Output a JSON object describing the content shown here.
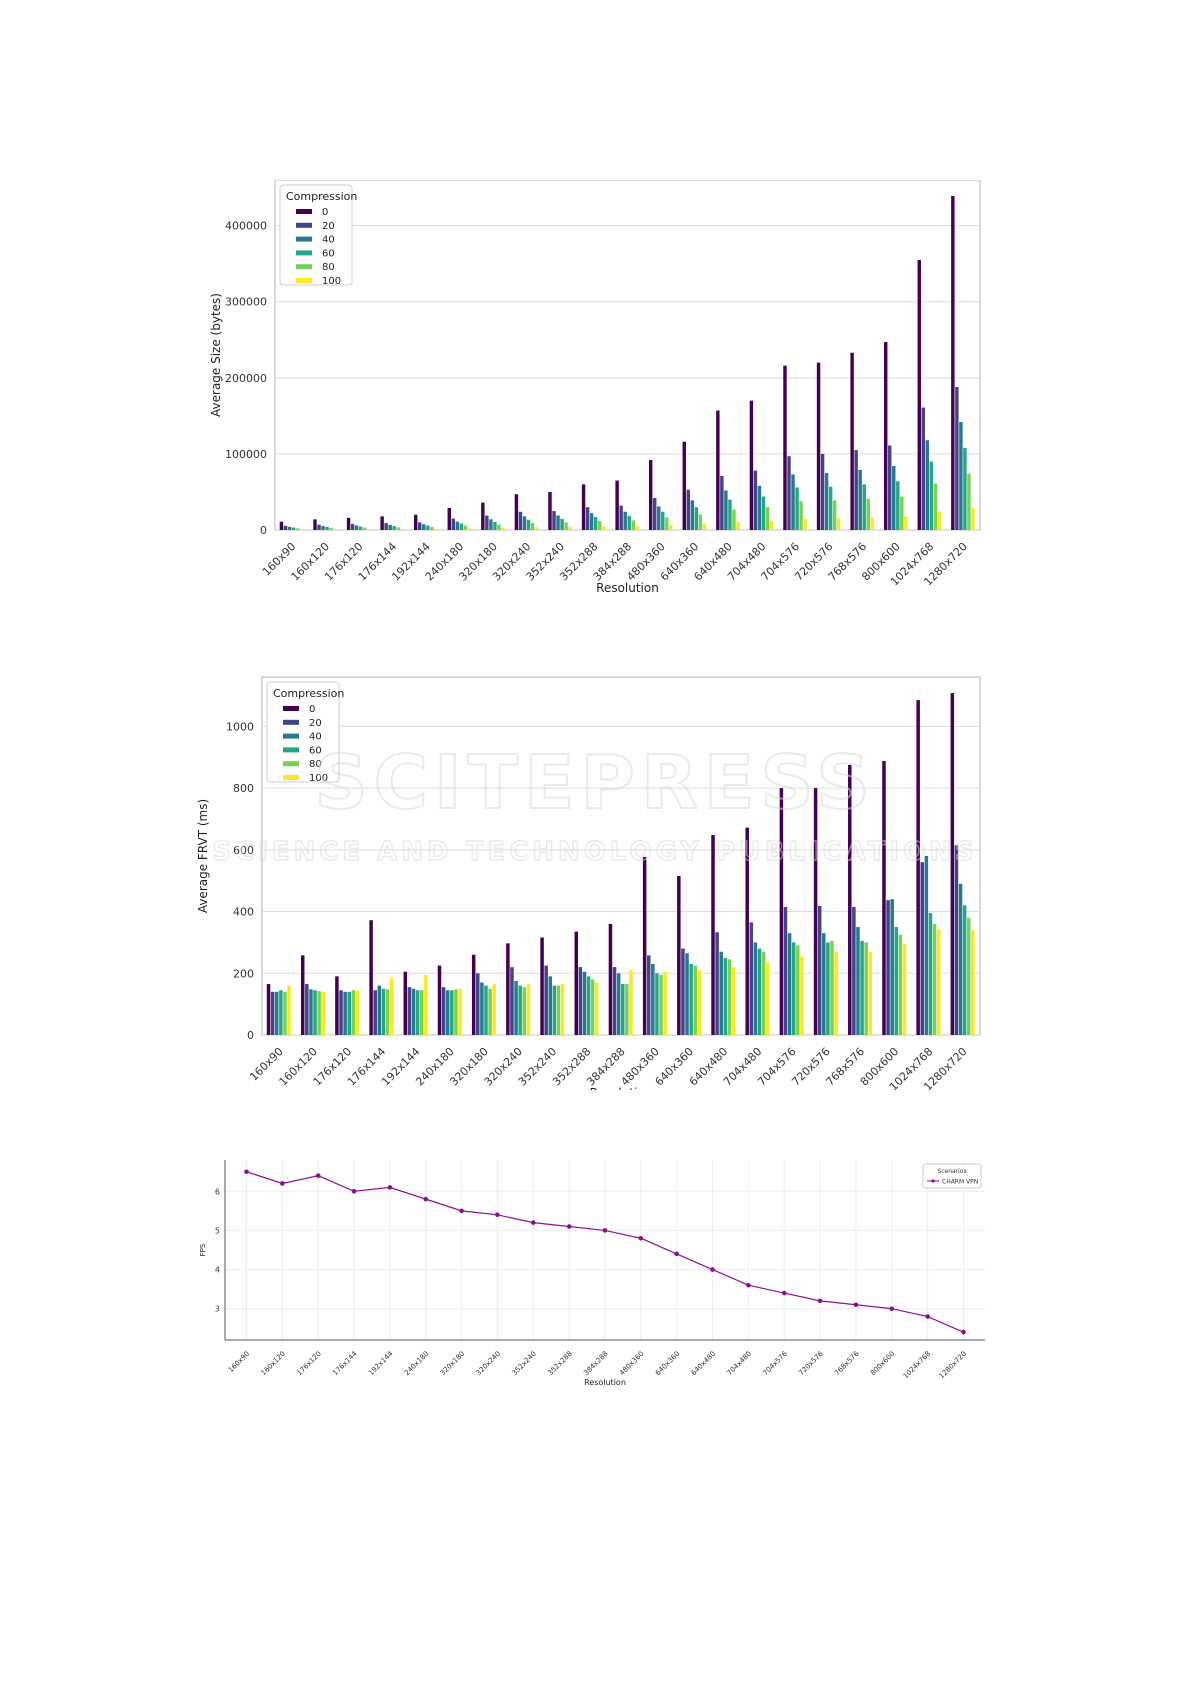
{
  "colors": {
    "c0": "#440154",
    "c20": "#414487",
    "c40": "#2a788e",
    "c60": "#22a884",
    "c80": "#7ad151",
    "c100": "#fde725",
    "line": "#8e0f8e",
    "grid": "#dddddd",
    "frame": "#cccccc",
    "watermark": "#d9d9d9"
  },
  "watermark": {
    "title": "SCITEPRESS",
    "subtitle": "SCIENCE AND TECHNOLOGY PUBLICATIONS"
  },
  "chart_data": [
    {
      "type": "bar",
      "xlabel": "Resolution",
      "ylabel": "Average Size (bytes)",
      "ylim": [
        0,
        460000
      ],
      "yticks": [
        "0",
        "100000",
        "200000",
        "300000",
        "400000"
      ],
      "grid": true,
      "legend": {
        "title": "Compression",
        "placement": "top-left"
      },
      "categories": [
        "160x90",
        "160x120",
        "176x120",
        "176x144",
        "192x144",
        "240x180",
        "320x180",
        "320x240",
        "352x240",
        "352x288",
        "384x288",
        "480x360",
        "640x360",
        "640x480",
        "704x480",
        "704x576",
        "720x576",
        "768x576",
        "800x600",
        "1024x768",
        "1280x720"
      ],
      "series": [
        {
          "name": "0",
          "values": [
            11000,
            14000,
            16000,
            18000,
            20000,
            29000,
            36000,
            47000,
            50000,
            60000,
            65000,
            92000,
            116000,
            157000,
            170000,
            216000,
            220000,
            233000,
            247000,
            355000,
            439000
          ]
        },
        {
          "name": "20",
          "values": [
            5500,
            7000,
            8000,
            9000,
            10000,
            15000,
            19000,
            24000,
            25000,
            30000,
            32000,
            42000,
            53000,
            71000,
            78000,
            97000,
            100000,
            105000,
            111000,
            161000,
            188000
          ]
        },
        {
          "name": "40",
          "values": [
            4200,
            5200,
            6000,
            6800,
            7600,
            11000,
            14000,
            18000,
            19000,
            22000,
            24000,
            31000,
            39000,
            52000,
            58000,
            73000,
            75000,
            79000,
            84000,
            118000,
            142000
          ]
        },
        {
          "name": "60",
          "values": [
            3200,
            4000,
            4600,
            5200,
            5800,
            8500,
            10500,
            13500,
            14500,
            17000,
            18500,
            24000,
            30000,
            40000,
            44000,
            56000,
            57000,
            60000,
            64000,
            90000,
            108000
          ]
        },
        {
          "name": "80",
          "values": [
            2200,
            2800,
            3200,
            3600,
            4000,
            5800,
            7200,
            9300,
            10000,
            11600,
            12600,
            16500,
            20500,
            27000,
            30000,
            38000,
            39000,
            41000,
            44000,
            61000,
            74000
          ]
        },
        {
          "name": "100",
          "values": [
            900,
            1100,
            1300,
            1500,
            1600,
            2300,
            2900,
            3700,
            4000,
            4600,
            5000,
            6600,
            8200,
            10800,
            12000,
            15000,
            15500,
            16500,
            17500,
            24500,
            29500
          ]
        }
      ]
    },
    {
      "type": "bar",
      "xlabel": "Resolution",
      "ylabel": "Average FRVT (ms)",
      "ylim": [
        0,
        1160
      ],
      "yticks": [
        "0",
        "200",
        "400",
        "600",
        "800",
        "1000"
      ],
      "grid": true,
      "legend": {
        "title": "Compression",
        "placement": "top-left"
      },
      "categories": [
        "160x90",
        "160x120",
        "176x120",
        "176x144",
        "192x144",
        "240x180",
        "320x180",
        "320x240",
        "352x240",
        "352x288",
        "384x288",
        "480x360",
        "640x360",
        "640x480",
        "704x480",
        "704x576",
        "720x576",
        "768x576",
        "800x600",
        "1024x768",
        "1280x720"
      ],
      "series": [
        {
          "name": "0",
          "values": [
            165,
            258,
            190,
            372,
            205,
            225,
            260,
            297,
            316,
            335,
            360,
            577,
            515,
            648,
            672,
            800,
            800,
            875,
            888,
            1085,
            1108
          ]
        },
        {
          "name": "20",
          "values": [
            140,
            165,
            145,
            145,
            155,
            155,
            200,
            220,
            225,
            220,
            220,
            258,
            280,
            333,
            365,
            415,
            418,
            415,
            437,
            560,
            615
          ]
        },
        {
          "name": "40",
          "values": [
            140,
            148,
            140,
            160,
            150,
            145,
            170,
            175,
            190,
            205,
            200,
            230,
            265,
            270,
            300,
            330,
            330,
            350,
            440,
            580,
            490
          ]
        },
        {
          "name": "60",
          "values": [
            145,
            145,
            140,
            150,
            145,
            145,
            160,
            160,
            160,
            190,
            165,
            200,
            230,
            250,
            280,
            300,
            300,
            305,
            350,
            395,
            420
          ]
        },
        {
          "name": "80",
          "values": [
            140,
            142,
            145,
            148,
            145,
            148,
            150,
            155,
            160,
            180,
            165,
            195,
            225,
            245,
            270,
            290,
            305,
            300,
            325,
            360,
            380
          ]
        },
        {
          "name": "100",
          "values": [
            160,
            140,
            145,
            185,
            195,
            150,
            165,
            165,
            165,
            170,
            210,
            205,
            210,
            220,
            235,
            255,
            270,
            270,
            295,
            340,
            340
          ]
        }
      ]
    },
    {
      "type": "line",
      "xlabel": "Resolution",
      "ylabel": "FPS",
      "ylim": [
        2.2,
        6.8
      ],
      "yticks": [
        "3",
        "4",
        "5",
        "6"
      ],
      "grid": true,
      "legend": {
        "title": "Scenarios",
        "placement": "top-right"
      },
      "x": [
        "160x90",
        "160x120",
        "176x120",
        "176x144",
        "192x144",
        "240x180",
        "320x180",
        "320x240",
        "352x240",
        "352x288",
        "384x288",
        "480x360",
        "640x360",
        "640x480",
        "704x480",
        "704x576",
        "720x576",
        "768x576",
        "800x600",
        "1024x768",
        "1280x720"
      ],
      "series": [
        {
          "name": "CHARM VPN",
          "values": [
            6.5,
            6.2,
            6.4,
            6.0,
            6.1,
            5.8,
            5.5,
            5.4,
            5.2,
            5.1,
            5.0,
            4.8,
            4.4,
            4.0,
            3.6,
            3.4,
            3.2,
            3.1,
            3.0,
            2.8,
            2.4
          ]
        }
      ]
    }
  ]
}
